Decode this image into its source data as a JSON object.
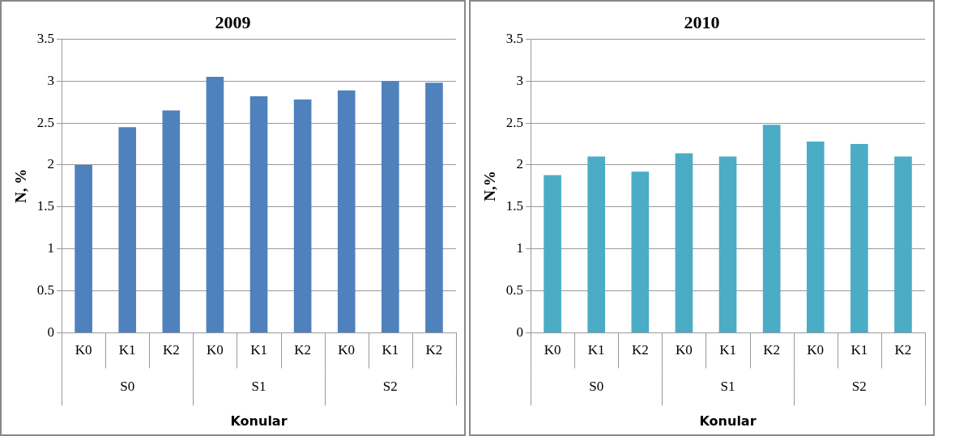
{
  "chart_data": [
    {
      "type": "bar",
      "title": "2009",
      "ylabel": "N, %",
      "xlabel": "Konular",
      "categories": [
        "K0",
        "K1",
        "K2",
        "K0",
        "K1",
        "K2",
        "K0",
        "K1",
        "K2"
      ],
      "values": [
        2.0,
        2.45,
        2.65,
        3.05,
        2.82,
        2.78,
        2.89,
        3.0,
        2.98
      ],
      "color": "#4f81bd",
      "ylim": [
        0,
        3.5
      ],
      "yticks": [
        0,
        0.5,
        1,
        1.5,
        2,
        2.5,
        3,
        3.5
      ],
      "grid": "y",
      "legend": false,
      "annotations": [
        "S0",
        "S1",
        "S2"
      ]
    },
    {
      "type": "bar",
      "title": "2010",
      "ylabel": "N,%",
      "xlabel": "Konular",
      "categories": [
        "K0",
        "K1",
        "K2",
        "K0",
        "K1",
        "K2",
        "K0",
        "K1",
        "K2"
      ],
      "values": [
        1.88,
        2.1,
        1.92,
        2.14,
        2.1,
        2.48,
        2.28,
        2.25,
        2.1
      ],
      "color": "#4bacc6",
      "ylim": [
        0,
        3.5
      ],
      "yticks": [
        0,
        0.5,
        1,
        1.5,
        2,
        2.5,
        3,
        3.5
      ],
      "grid": "y",
      "legend": false,
      "annotations": [
        "S0",
        "S1",
        "S2"
      ]
    }
  ]
}
